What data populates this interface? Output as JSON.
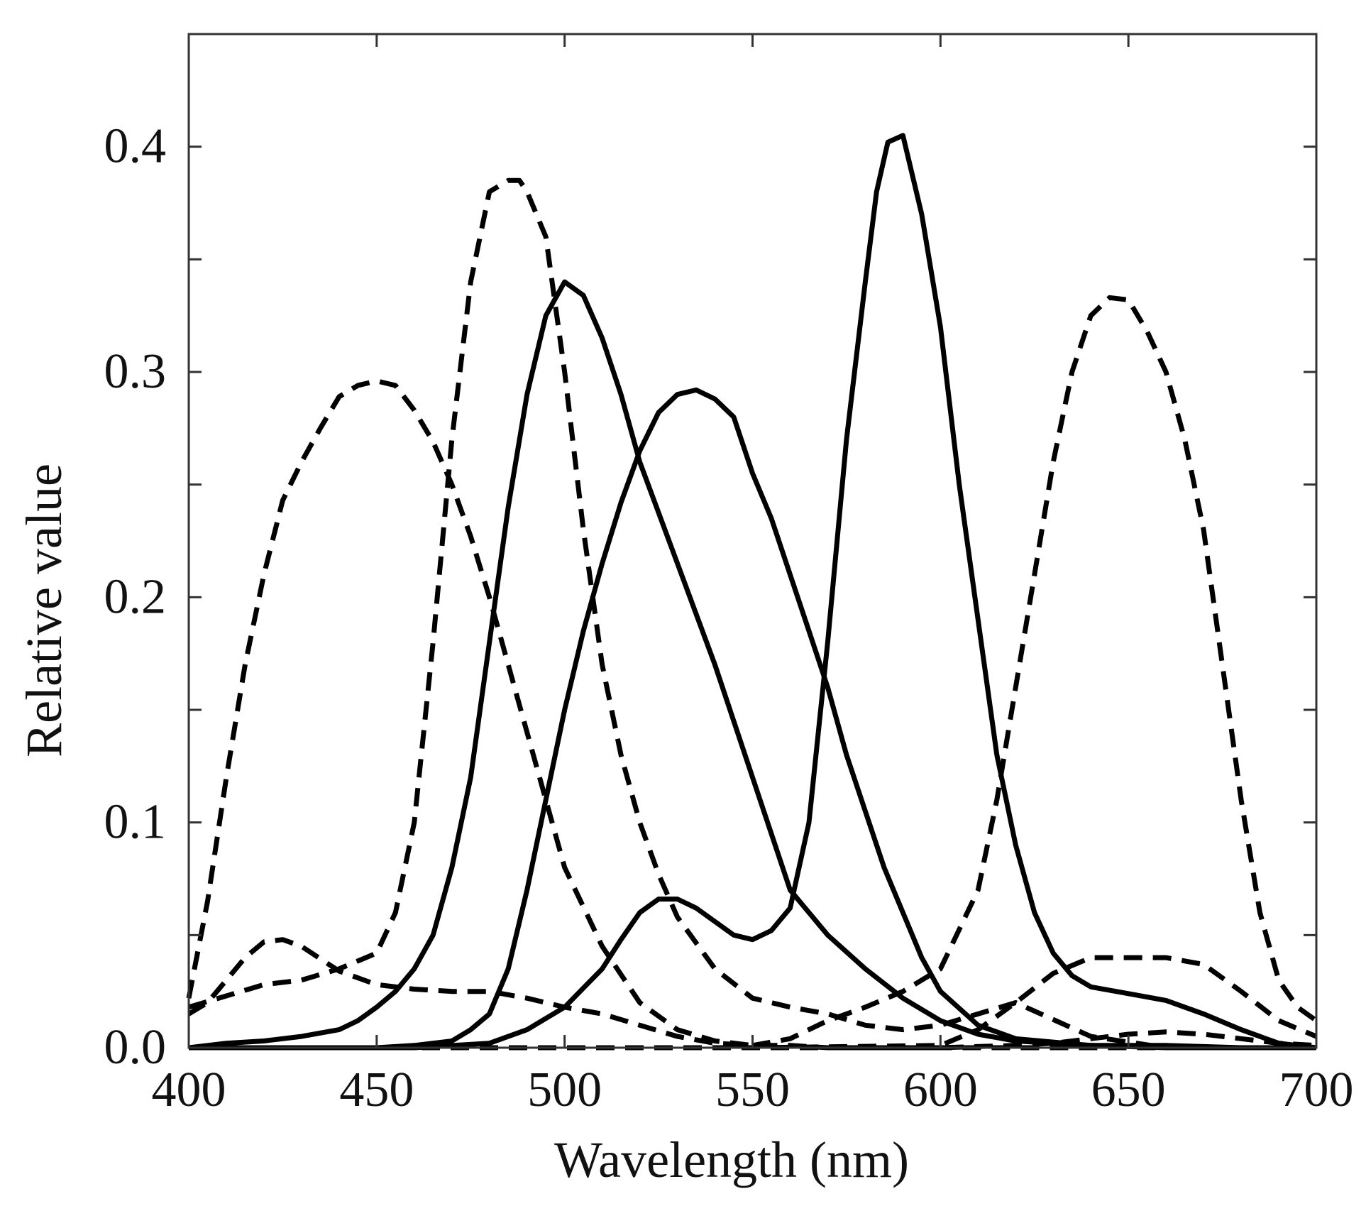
{
  "chart_data": {
    "type": "line",
    "xlabel": "Wavelength (nm)",
    "ylabel": "Relative value",
    "xlim": [
      400,
      700
    ],
    "ylim": [
      0.0,
      0.45
    ],
    "xticks": [
      400,
      450,
      500,
      550,
      600,
      650,
      700
    ],
    "xtick_labels": [
      "400",
      "450",
      "500",
      "550",
      "600",
      "650",
      "700"
    ],
    "yticks": [
      0.0,
      0.1,
      0.2,
      0.3,
      0.4
    ],
    "ytick_labels": [
      "0.0",
      "0.1",
      "0.2",
      "0.3",
      "0.4"
    ],
    "minor_yticks": [
      0.05,
      0.15,
      0.25,
      0.35
    ],
    "grid": false,
    "line_color": "#000000",
    "series": [
      {
        "style": "dashed",
        "x": [
          400,
          405,
          410,
          415,
          420,
          425,
          430,
          435,
          440,
          445,
          450,
          455,
          460,
          465,
          470,
          475,
          480,
          485,
          490,
          495,
          500,
          510,
          520,
          530,
          540,
          550,
          560,
          570,
          580,
          600,
          620,
          640,
          660,
          680,
          700
        ],
        "y": [
          0.022,
          0.065,
          0.12,
          0.17,
          0.21,
          0.243,
          0.26,
          0.275,
          0.289,
          0.294,
          0.296,
          0.294,
          0.283,
          0.269,
          0.25,
          0.227,
          0.2,
          0.17,
          0.14,
          0.11,
          0.08,
          0.045,
          0.02,
          0.008,
          0.003,
          0.001,
          0.001,
          0.0,
          0.0,
          0.0,
          0.0,
          0.0,
          0.0,
          0.0,
          0.0
        ]
      },
      {
        "style": "dashed",
        "x": [
          400,
          410,
          420,
          430,
          440,
          450,
          455,
          460,
          465,
          470,
          475,
          480,
          485,
          488,
          490,
          495,
          500,
          505,
          510,
          515,
          520,
          525,
          530,
          540,
          550,
          560,
          570,
          580,
          590,
          600,
          620,
          640,
          660,
          680,
          700
        ],
        "y": [
          0.018,
          0.023,
          0.028,
          0.03,
          0.035,
          0.042,
          0.06,
          0.1,
          0.18,
          0.27,
          0.34,
          0.38,
          0.385,
          0.385,
          0.38,
          0.36,
          0.3,
          0.23,
          0.17,
          0.13,
          0.1,
          0.077,
          0.058,
          0.035,
          0.022,
          0.018,
          0.015,
          0.01,
          0.008,
          0.01,
          0.02,
          0.005,
          0.0,
          0.0,
          0.0
        ]
      },
      {
        "style": "dashed",
        "x": [
          400,
          405,
          410,
          415,
          420,
          425,
          430,
          440,
          450,
          460,
          470,
          480,
          490,
          500,
          510,
          520,
          530,
          540,
          550,
          560,
          570,
          580,
          590,
          600,
          610,
          615,
          620,
          625,
          630,
          635,
          640,
          645,
          650,
          655,
          660,
          665,
          670,
          675,
          680,
          685,
          690,
          695,
          700
        ],
        "y": [
          0.015,
          0.02,
          0.03,
          0.04,
          0.047,
          0.048,
          0.045,
          0.034,
          0.028,
          0.026,
          0.025,
          0.025,
          0.022,
          0.018,
          0.015,
          0.01,
          0.005,
          0.002,
          0.001,
          0.004,
          0.012,
          0.018,
          0.025,
          0.035,
          0.07,
          0.11,
          0.16,
          0.21,
          0.26,
          0.3,
          0.325,
          0.333,
          0.332,
          0.318,
          0.3,
          0.27,
          0.23,
          0.17,
          0.11,
          0.06,
          0.03,
          0.018,
          0.012
        ]
      },
      {
        "style": "dashed",
        "x": [
          400,
          450,
          500,
          550,
          600,
          620,
          630,
          640,
          650,
          660,
          670,
          680,
          690,
          700
        ],
        "y": [
          0.0,
          0.0,
          0.0,
          0.0,
          0.0,
          0.001,
          0.002,
          0.004,
          0.006,
          0.007,
          0.006,
          0.004,
          0.002,
          0.001
        ]
      },
      {
        "style": "dashed",
        "x": [
          400,
          500,
          550,
          600,
          610,
          620,
          630,
          640,
          650,
          660,
          670,
          680,
          690,
          700
        ],
        "y": [
          0.0,
          0.0,
          0.0,
          0.001,
          0.008,
          0.02,
          0.033,
          0.04,
          0.04,
          0.04,
          0.037,
          0.025,
          0.012,
          0.005
        ]
      },
      {
        "style": "solid",
        "x": [
          400,
          410,
          420,
          430,
          440,
          445,
          450,
          455,
          460,
          465,
          470,
          475,
          480,
          485,
          490,
          495,
          500,
          505,
          510,
          515,
          520,
          530,
          540,
          550,
          560,
          570,
          580,
          590,
          600,
          610,
          620,
          640,
          660,
          680,
          700
        ],
        "y": [
          0.0,
          0.002,
          0.003,
          0.005,
          0.008,
          0.012,
          0.018,
          0.025,
          0.035,
          0.05,
          0.08,
          0.12,
          0.18,
          0.24,
          0.29,
          0.325,
          0.34,
          0.334,
          0.315,
          0.29,
          0.26,
          0.215,
          0.17,
          0.12,
          0.07,
          0.05,
          0.035,
          0.022,
          0.012,
          0.006,
          0.003,
          0.001,
          0.001,
          0.0,
          0.0
        ]
      },
      {
        "style": "solid",
        "x": [
          400,
          450,
          460,
          470,
          475,
          480,
          485,
          490,
          495,
          500,
          505,
          510,
          515,
          520,
          525,
          530,
          535,
          540,
          545,
          550,
          555,
          560,
          565,
          570,
          575,
          580,
          585,
          590,
          595,
          600,
          610,
          620,
          640,
          660,
          680,
          700
        ],
        "y": [
          0.0,
          0.0,
          0.001,
          0.003,
          0.008,
          0.015,
          0.035,
          0.07,
          0.11,
          0.15,
          0.185,
          0.215,
          0.242,
          0.265,
          0.282,
          0.29,
          0.292,
          0.288,
          0.28,
          0.255,
          0.235,
          0.21,
          0.185,
          0.16,
          0.13,
          0.105,
          0.08,
          0.06,
          0.04,
          0.025,
          0.01,
          0.004,
          0.001,
          0.0,
          0.0,
          0.0
        ]
      },
      {
        "style": "solid",
        "x": [
          400,
          460,
          480,
          490,
          500,
          510,
          515,
          520,
          525,
          530,
          535,
          540,
          545,
          550,
          555,
          560,
          565,
          570,
          575,
          580,
          583,
          586,
          590,
          595,
          600,
          605,
          610,
          615,
          620,
          625,
          630,
          635,
          640,
          650,
          660,
          670,
          680,
          690,
          700
        ],
        "y": [
          0.0,
          0.0,
          0.002,
          0.008,
          0.018,
          0.035,
          0.048,
          0.06,
          0.066,
          0.066,
          0.062,
          0.056,
          0.05,
          0.048,
          0.052,
          0.062,
          0.1,
          0.18,
          0.27,
          0.34,
          0.38,
          0.402,
          0.405,
          0.37,
          0.32,
          0.25,
          0.19,
          0.13,
          0.09,
          0.06,
          0.042,
          0.032,
          0.027,
          0.024,
          0.021,
          0.015,
          0.008,
          0.002,
          0.0
        ]
      }
    ]
  }
}
